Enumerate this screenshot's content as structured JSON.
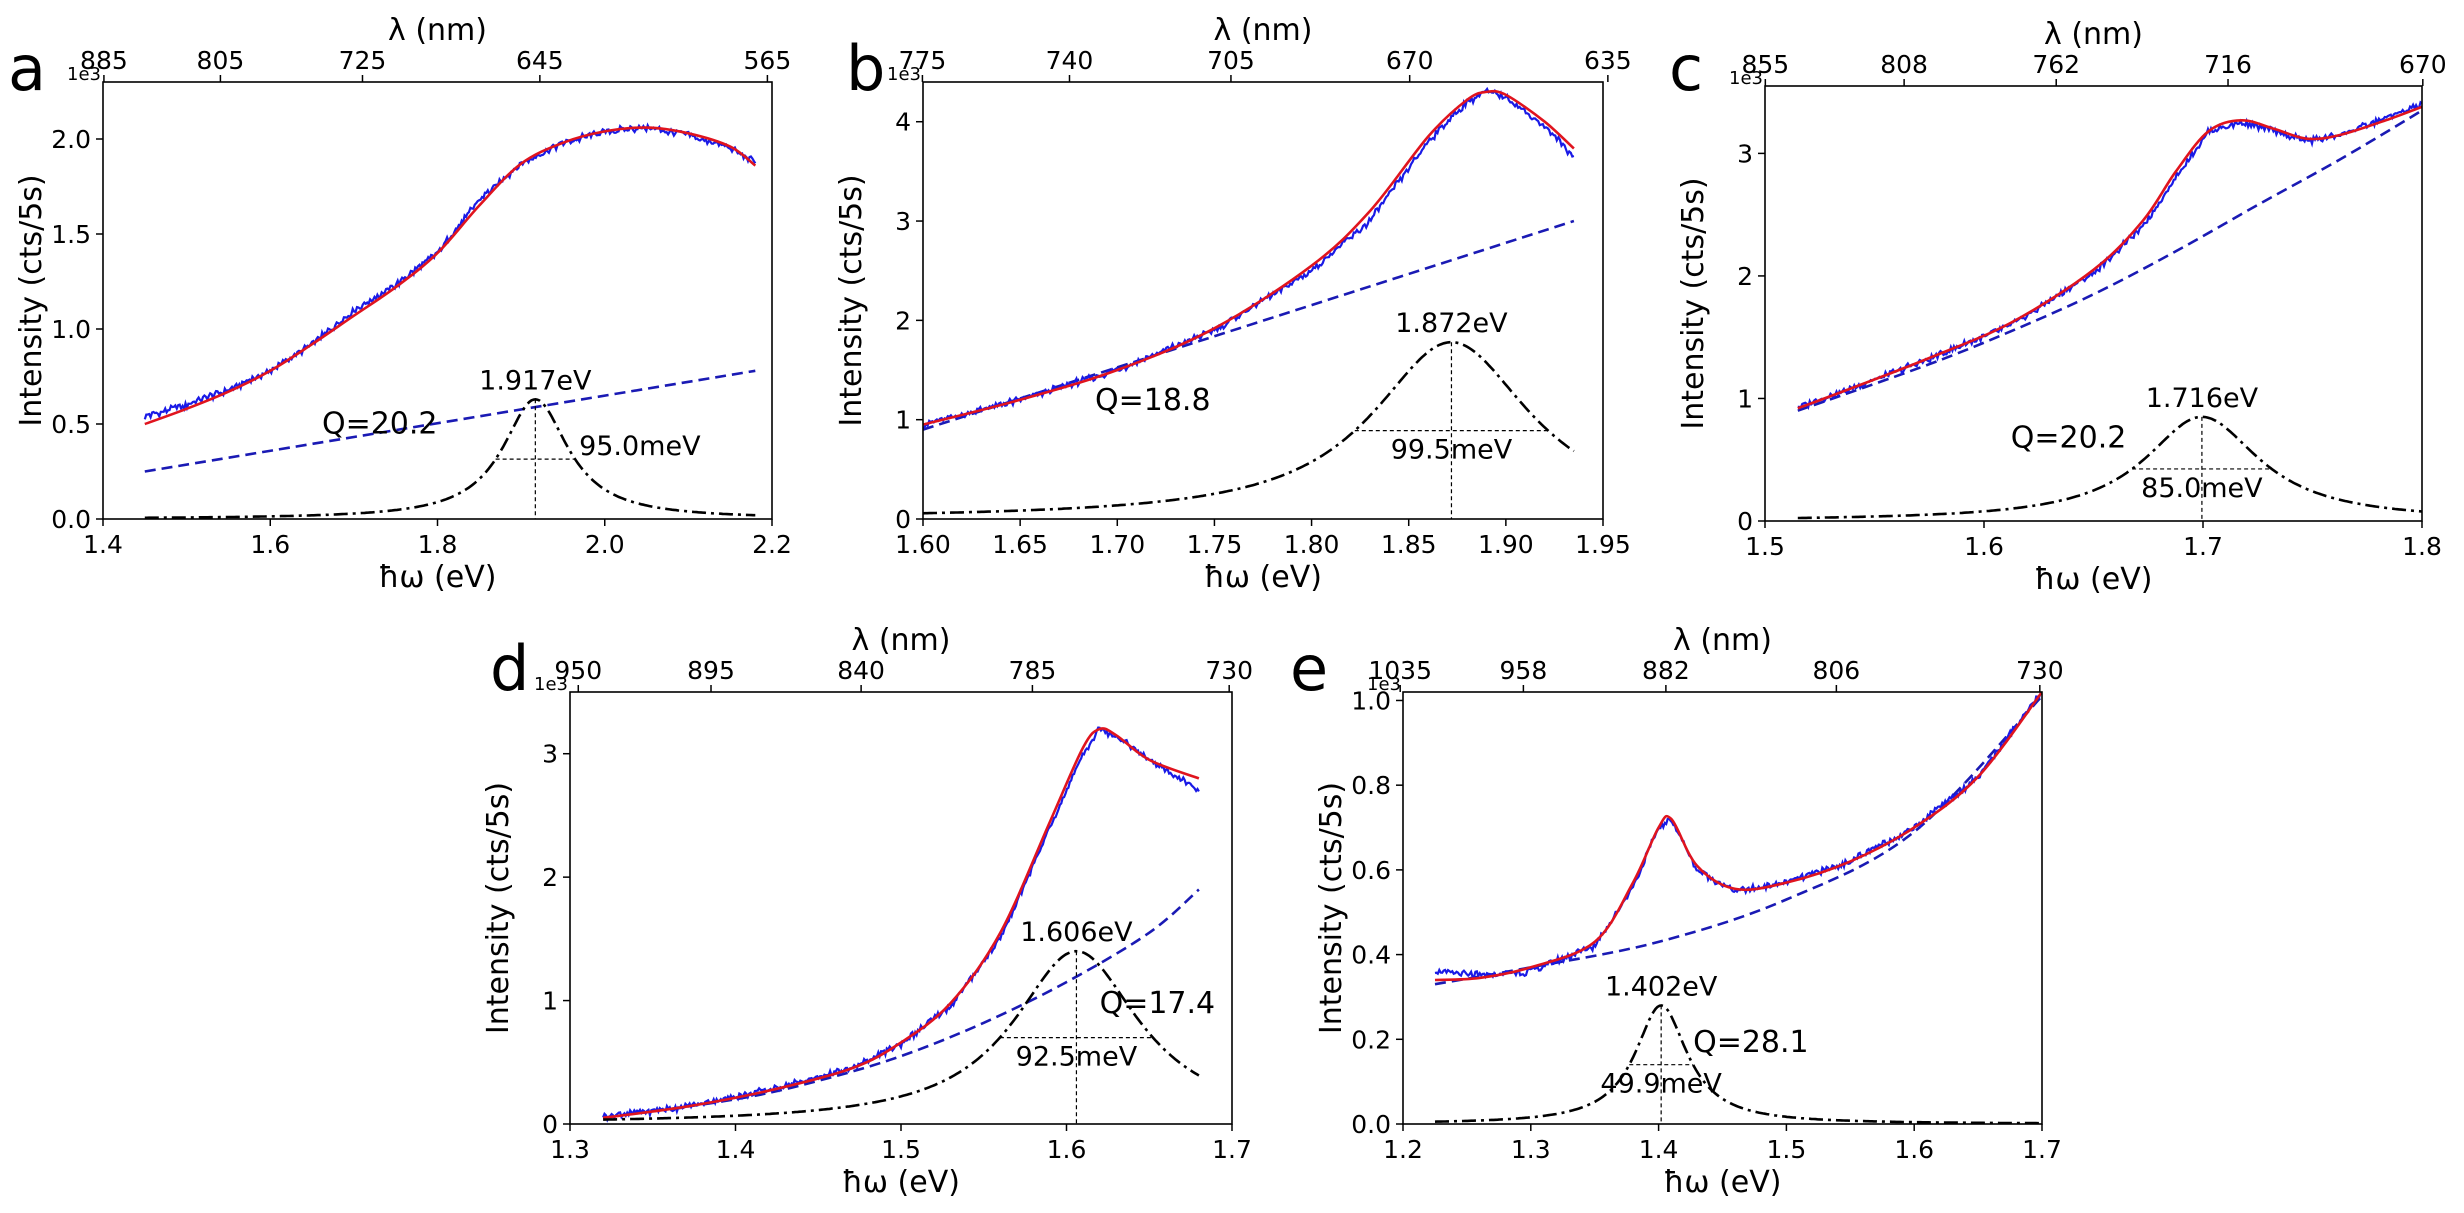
{
  "panels": [
    {
      "id": "a",
      "letter": "a",
      "xlabel": "ħω (eV)",
      "ylabel": "Intensity (cts/5s)",
      "top_xlabel": "λ (nm)",
      "y_exponent": "1e3",
      "x_range": [
        1.4,
        2.2
      ],
      "y_range": [
        0,
        2.3
      ],
      "x_ticks": [
        "1.4",
        "1.6",
        "1.8",
        "2.0",
        "2.2"
      ],
      "y_ticks": [
        "0.0",
        "0.5",
        "1.0",
        "1.5",
        "2.0"
      ],
      "top_ticks": [
        "885",
        "805",
        "725",
        "645",
        "565"
      ],
      "peak_label": "1.917eV",
      "fwhm_label": "95.0meV",
      "q_label": "Q=20.2"
    },
    {
      "id": "b",
      "letter": "b",
      "xlabel": "ħω (eV)",
      "ylabel": "Intensity (cts/5s)",
      "top_xlabel": "λ (nm)",
      "y_exponent": "1e3",
      "x_range": [
        1.6,
        1.95
      ],
      "y_range": [
        0,
        4.4
      ],
      "x_ticks": [
        "1.60",
        "1.65",
        "1.70",
        "1.75",
        "1.80",
        "1.85",
        "1.90",
        "1.95"
      ],
      "y_ticks": [
        "0",
        "1",
        "2",
        "3",
        "4"
      ],
      "top_ticks": [
        "775",
        "740",
        "705",
        "670",
        "635"
      ],
      "peak_label": "1.872eV",
      "fwhm_label": "99.5meV",
      "q_label": "Q=18.8"
    },
    {
      "id": "c",
      "letter": "c",
      "xlabel": "ħω (eV)",
      "ylabel": "Intensity (cts/5s)",
      "top_xlabel": "λ (nm)",
      "y_exponent": "1e3",
      "x_range": [
        1.45,
        1.85
      ],
      "y_range": [
        0,
        3.55
      ],
      "x_ticks": [
        "1.5",
        "1.6",
        "1.7",
        "1.8"
      ],
      "y_ticks": [
        "0",
        "1",
        "2",
        "3"
      ],
      "top_ticks": [
        "855",
        "808",
        "762",
        "716",
        "670"
      ],
      "peak_label": "1.716eV",
      "fwhm_label": "85.0meV",
      "q_label": "Q=20.2"
    },
    {
      "id": "d",
      "letter": "d",
      "xlabel": "ħω (eV)",
      "ylabel": "Intensity (cts/5s)",
      "top_xlabel": "λ (nm)",
      "y_exponent": "1e3",
      "x_range": [
        1.3,
        1.7
      ],
      "y_range": [
        0,
        3.5
      ],
      "x_ticks": [
        "1.3",
        "1.4",
        "1.5",
        "1.6",
        "1.7"
      ],
      "y_ticks": [
        "0",
        "1",
        "2",
        "3"
      ],
      "top_ticks": [
        "950",
        "895",
        "840",
        "785",
        "730"
      ],
      "peak_label": "1.606eV",
      "fwhm_label": "92.5meV",
      "q_label": "Q=17.4"
    },
    {
      "id": "e",
      "letter": "e",
      "xlabel": "ħω (eV)",
      "ylabel": "Intensity (cts/5s)",
      "top_xlabel": "λ (nm)",
      "y_exponent": "1e3",
      "x_range": [
        1.2,
        1.7
      ],
      "y_range": [
        0,
        1.02
      ],
      "x_ticks": [
        "1.2",
        "1.3",
        "1.4",
        "1.5",
        "1.6",
        "1.7"
      ],
      "y_ticks": [
        "0.0",
        "0.2",
        "0.4",
        "0.6",
        "0.8",
        "1.0"
      ],
      "top_ticks": [
        "1035",
        "958",
        "882",
        "806",
        "730"
      ],
      "peak_label": "1.402eV",
      "fwhm_label": "49.9meV",
      "q_label": "Q=28.1"
    }
  ],
  "colors": {
    "measured": "#1a1ae6",
    "fit": "#e0141e",
    "background": "#1a1ab4",
    "lorentzian": "#000000"
  },
  "chart_data": [
    {
      "type": "line",
      "panel": "a",
      "x_range": [
        1.4,
        2.2
      ],
      "y_range": [
        0,
        2.3
      ],
      "y_unit_exponent": 3,
      "series_points": {
        "measured": [
          [
            1.45,
            0.54
          ],
          [
            1.5,
            0.6
          ],
          [
            1.55,
            0.68
          ],
          [
            1.6,
            0.78
          ],
          [
            1.65,
            0.92
          ],
          [
            1.7,
            1.1
          ],
          [
            1.75,
            1.23
          ],
          [
            1.8,
            1.4
          ],
          [
            1.85,
            1.68
          ],
          [
            1.9,
            1.87
          ],
          [
            1.95,
            1.98
          ],
          [
            2.0,
            2.04
          ],
          [
            2.05,
            2.06
          ],
          [
            2.1,
            2.02
          ],
          [
            2.15,
            1.95
          ],
          [
            2.18,
            1.88
          ]
        ],
        "fit": [
          [
            1.45,
            0.5
          ],
          [
            1.5,
            0.58
          ],
          [
            1.55,
            0.67
          ],
          [
            1.6,
            0.78
          ],
          [
            1.65,
            0.92
          ],
          [
            1.7,
            1.07
          ],
          [
            1.75,
            1.22
          ],
          [
            1.8,
            1.4
          ],
          [
            1.85,
            1.65
          ],
          [
            1.9,
            1.87
          ],
          [
            1.95,
            1.98
          ],
          [
            2.0,
            2.04
          ],
          [
            2.05,
            2.06
          ],
          [
            2.1,
            2.03
          ],
          [
            2.15,
            1.96
          ],
          [
            2.18,
            1.86
          ]
        ],
        "background": [
          [
            1.45,
            0.25
          ],
          [
            2.18,
            0.78
          ]
        ],
        "lorentzian": {
          "center": 1.917,
          "fwhm": 0.095,
          "amplitude": 0.63,
          "baseline": 0.0
        }
      },
      "peak_eV": 1.917,
      "fwhm_meV": 95.0,
      "Q": 20.2
    },
    {
      "type": "line",
      "panel": "b",
      "x_range": [
        1.6,
        1.95
      ],
      "y_range": [
        0,
        4.4
      ],
      "y_unit_exponent": 3,
      "series_points": {
        "measured": [
          [
            1.6,
            0.95
          ],
          [
            1.65,
            1.2
          ],
          [
            1.7,
            1.5
          ],
          [
            1.75,
            1.9
          ],
          [
            1.8,
            2.5
          ],
          [
            1.83,
            3.0
          ],
          [
            1.86,
            3.8
          ],
          [
            1.88,
            4.2
          ],
          [
            1.89,
            4.3
          ],
          [
            1.9,
            4.25
          ],
          [
            1.92,
            3.95
          ],
          [
            1.935,
            3.65
          ]
        ],
        "fit": [
          [
            1.6,
            0.95
          ],
          [
            1.65,
            1.2
          ],
          [
            1.7,
            1.5
          ],
          [
            1.75,
            1.92
          ],
          [
            1.8,
            2.55
          ],
          [
            1.83,
            3.1
          ],
          [
            1.86,
            3.85
          ],
          [
            1.88,
            4.22
          ],
          [
            1.89,
            4.3
          ],
          [
            1.9,
            4.27
          ],
          [
            1.92,
            4.0
          ],
          [
            1.935,
            3.73
          ]
        ],
        "background": [
          [
            1.6,
            0.9
          ],
          [
            1.935,
            3.0
          ]
        ],
        "lorentzian": {
          "center": 1.872,
          "fwhm": 0.0995,
          "amplitude": 1.78,
          "baseline": 0.0
        }
      },
      "peak_eV": 1.872,
      "fwhm_meV": 99.5,
      "Q": 18.8
    },
    {
      "type": "line",
      "panel": "c",
      "x_range": [
        1.45,
        1.85
      ],
      "y_range": [
        0,
        3.55
      ],
      "y_unit_exponent": 3,
      "series_points": {
        "measured": [
          [
            1.47,
            0.93
          ],
          [
            1.5,
            1.07
          ],
          [
            1.55,
            1.32
          ],
          [
            1.6,
            1.6
          ],
          [
            1.65,
            2.02
          ],
          [
            1.68,
            2.4
          ],
          [
            1.7,
            2.8
          ],
          [
            1.72,
            3.18
          ],
          [
            1.74,
            3.25
          ],
          [
            1.76,
            3.18
          ],
          [
            1.78,
            3.1
          ],
          [
            1.8,
            3.15
          ],
          [
            1.83,
            3.3
          ],
          [
            1.85,
            3.4
          ]
        ],
        "fit": [
          [
            1.47,
            0.92
          ],
          [
            1.5,
            1.07
          ],
          [
            1.55,
            1.33
          ],
          [
            1.6,
            1.62
          ],
          [
            1.65,
            2.05
          ],
          [
            1.68,
            2.45
          ],
          [
            1.7,
            2.85
          ],
          [
            1.72,
            3.18
          ],
          [
            1.74,
            3.27
          ],
          [
            1.76,
            3.2
          ],
          [
            1.78,
            3.12
          ],
          [
            1.8,
            3.15
          ],
          [
            1.83,
            3.28
          ],
          [
            1.85,
            3.38
          ]
        ],
        "background": [
          [
            1.47,
            0.9
          ],
          [
            1.55,
            1.28
          ],
          [
            1.6,
            1.55
          ],
          [
            1.65,
            1.85
          ],
          [
            1.7,
            2.2
          ],
          [
            1.75,
            2.58
          ],
          [
            1.8,
            2.95
          ],
          [
            1.85,
            3.35
          ]
        ],
        "lorentzian": {
          "center": 1.716,
          "fwhm": 0.085,
          "amplitude": 0.85,
          "baseline": 0.0
        }
      },
      "peak_eV": 1.716,
      "fwhm_meV": 85.0,
      "Q": 20.2
    },
    {
      "type": "line",
      "panel": "d",
      "x_range": [
        1.3,
        1.7
      ],
      "y_range": [
        0,
        3.5
      ],
      "y_unit_exponent": 3,
      "series_points": {
        "measured": [
          [
            1.32,
            0.06
          ],
          [
            1.37,
            0.14
          ],
          [
            1.42,
            0.28
          ],
          [
            1.47,
            0.45
          ],
          [
            1.5,
            0.65
          ],
          [
            1.53,
            0.95
          ],
          [
            1.56,
            1.5
          ],
          [
            1.59,
            2.4
          ],
          [
            1.61,
            3.0
          ],
          [
            1.62,
            3.2
          ],
          [
            1.63,
            3.15
          ],
          [
            1.65,
            2.95
          ],
          [
            1.68,
            2.7
          ]
        ],
        "fit": [
          [
            1.32,
            0.05
          ],
          [
            1.37,
            0.14
          ],
          [
            1.42,
            0.27
          ],
          [
            1.47,
            0.45
          ],
          [
            1.5,
            0.66
          ],
          [
            1.53,
            0.98
          ],
          [
            1.56,
            1.55
          ],
          [
            1.59,
            2.45
          ],
          [
            1.61,
            3.05
          ],
          [
            1.62,
            3.2
          ],
          [
            1.63,
            3.15
          ],
          [
            1.65,
            2.95
          ],
          [
            1.68,
            2.8
          ]
        ],
        "background": [
          [
            1.32,
            0.05
          ],
          [
            1.4,
            0.2
          ],
          [
            1.45,
            0.35
          ],
          [
            1.5,
            0.55
          ],
          [
            1.55,
            0.82
          ],
          [
            1.6,
            1.15
          ],
          [
            1.65,
            1.55
          ],
          [
            1.68,
            1.9
          ]
        ],
        "lorentzian": {
          "center": 1.606,
          "fwhm": 0.0925,
          "amplitude": 1.4,
          "baseline": 0.0
        }
      },
      "peak_eV": 1.606,
      "fwhm_meV": 92.5,
      "Q": 17.4
    },
    {
      "type": "line",
      "panel": "e",
      "x_range": [
        1.2,
        1.7
      ],
      "y_range": [
        0,
        1.02
      ],
      "y_unit_exponent": 3,
      "series_points": {
        "measured": [
          [
            1.225,
            0.36
          ],
          [
            1.26,
            0.35
          ],
          [
            1.3,
            0.36
          ],
          [
            1.35,
            0.42
          ],
          [
            1.38,
            0.56
          ],
          [
            1.4,
            0.7
          ],
          [
            1.41,
            0.72
          ],
          [
            1.43,
            0.6
          ],
          [
            1.46,
            0.55
          ],
          [
            1.5,
            0.57
          ],
          [
            1.55,
            0.62
          ],
          [
            1.6,
            0.7
          ],
          [
            1.65,
            0.82
          ],
          [
            1.7,
            1.02
          ]
        ],
        "fit": [
          [
            1.225,
            0.34
          ],
          [
            1.26,
            0.345
          ],
          [
            1.3,
            0.37
          ],
          [
            1.35,
            0.43
          ],
          [
            1.38,
            0.57
          ],
          [
            1.4,
            0.7
          ],
          [
            1.41,
            0.72
          ],
          [
            1.43,
            0.61
          ],
          [
            1.46,
            0.555
          ],
          [
            1.5,
            0.57
          ],
          [
            1.55,
            0.62
          ],
          [
            1.6,
            0.7
          ],
          [
            1.65,
            0.82
          ],
          [
            1.7,
            1.02
          ]
        ],
        "background": [
          [
            1.225,
            0.33
          ],
          [
            1.3,
            0.37
          ],
          [
            1.4,
            0.43
          ],
          [
            1.5,
            0.53
          ],
          [
            1.6,
            0.69
          ],
          [
            1.7,
            1.01
          ]
        ],
        "lorentzian": {
          "center": 1.402,
          "fwhm": 0.0499,
          "amplitude": 0.28,
          "baseline": 0.0
        }
      },
      "peak_eV": 1.402,
      "fwhm_meV": 49.9,
      "Q": 28.1
    }
  ]
}
